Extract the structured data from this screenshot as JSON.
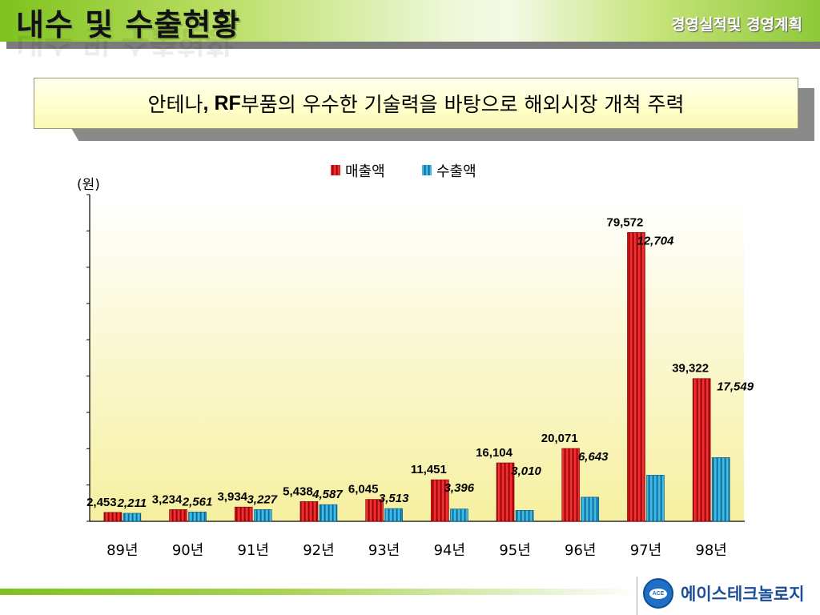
{
  "header": {
    "title": "내수 및 수출현황",
    "section": "경영실적및 경영계획"
  },
  "banner": {
    "text_prefix": "안테나",
    "text_bold": ", RF",
    "text_suffix": "부품의 우수한 기술력을 바탕으로 해외시장 개척 주력"
  },
  "footer": {
    "company": "에이스테크놀로지",
    "logo_text": "ACE"
  },
  "colors": {
    "sales": "#e0161b",
    "export": "#1fa5d6",
    "plot_top": "#ffffff",
    "plot_bottom": "#f6f0a0"
  },
  "chart_data": {
    "type": "bar",
    "unit_label": "(원)",
    "categories": [
      "89년",
      "90년",
      "91년",
      "92년",
      "93년",
      "94년",
      "95년",
      "96년",
      "97년",
      "98년"
    ],
    "series": [
      {
        "name": "매출액",
        "values": [
          2453,
          3234,
          3934,
          5438,
          6045,
          11451,
          16104,
          20071,
          79572,
          39322
        ],
        "labels": [
          "2,453",
          "3,234",
          "3,934",
          "5,438",
          "6,045",
          "11,451",
          "16,104",
          "20,071",
          "79,572",
          "39,322"
        ]
      },
      {
        "name": "수출액",
        "values": [
          2211,
          2561,
          3227,
          4587,
          3513,
          3396,
          3010,
          6643,
          12704,
          17549
        ],
        "labels": [
          "2,211",
          "2,561",
          "3,227",
          "4,587",
          "3,513",
          "3,396",
          "3,010",
          "6,643",
          "12,704",
          "17,549"
        ]
      }
    ],
    "ylim": [
      0,
      90000
    ],
    "ytick_step": 10000,
    "legend": "top-center"
  }
}
